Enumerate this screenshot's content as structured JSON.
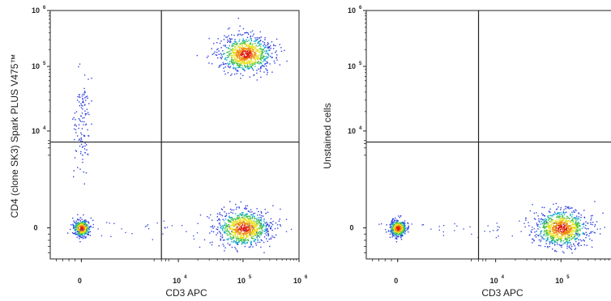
{
  "chart_data": [
    {
      "type": "scatter",
      "subtype": "flow-cytometry-density-dot-plot",
      "xlabel": "CD3 APC",
      "ylabel": "CD4 (clone SK3) Spark PLUS V475™",
      "x_ticks": [
        {
          "base": "0",
          "exp": ""
        },
        {
          "base": "10",
          "exp": "4"
        },
        {
          "base": "10",
          "exp": "5"
        },
        {
          "base": "10",
          "exp": "6"
        }
      ],
      "y_ticks": [
        {
          "base": "0",
          "exp": ""
        },
        {
          "base": "10",
          "exp": "4"
        },
        {
          "base": "10",
          "exp": "5"
        },
        {
          "base": "10",
          "exp": "6"
        }
      ],
      "scale": "biexponential",
      "xlim": [
        -5000,
        1000000
      ],
      "ylim": [
        -5000,
        1000000
      ],
      "gate": {
        "x": 2000,
        "y": 3500
      },
      "populations": [
        {
          "label": "CD3- CD4-",
          "x": 0,
          "y": 0,
          "density": "high"
        },
        {
          "label": "CD3+ CD4+",
          "x": 110000,
          "y": 170000,
          "density": "high"
        },
        {
          "label": "CD3+ CD4-",
          "x": 100000,
          "y": 0,
          "density": "high"
        },
        {
          "label": "CD3- CD4+ (sparse)",
          "x": 0,
          "y": 14000,
          "density": "low"
        }
      ]
    },
    {
      "type": "scatter",
      "subtype": "flow-cytometry-density-dot-plot",
      "xlabel": "CD3 APC",
      "ylabel": "Unstained cells",
      "x_ticks": [
        {
          "base": "0",
          "exp": ""
        },
        {
          "base": "10",
          "exp": "4"
        },
        {
          "base": "10",
          "exp": "5"
        },
        {
          "base": "10",
          "exp": "6"
        }
      ],
      "y_ticks": [
        {
          "base": "0",
          "exp": ""
        },
        {
          "base": "10",
          "exp": "4"
        },
        {
          "base": "10",
          "exp": "5"
        },
        {
          "base": "10",
          "exp": "6"
        }
      ],
      "scale": "biexponential",
      "xlim": [
        -5000,
        1000000
      ],
      "ylim": [
        -5000,
        1000000
      ],
      "gate": {
        "x": 2000,
        "y": 3500
      },
      "populations": [
        {
          "label": "CD3- unstained",
          "x": 0,
          "y": 0,
          "density": "high"
        },
        {
          "label": "CD3+ unstained",
          "x": 100000,
          "y": 0,
          "density": "high"
        }
      ]
    }
  ]
}
